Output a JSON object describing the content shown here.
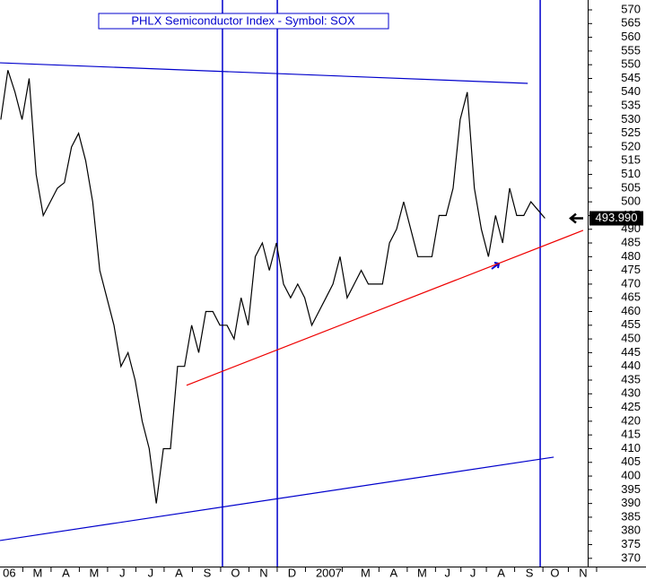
{
  "chart_data": {
    "type": "line",
    "title": "PHLX Semiconductor Index - Symbol: SOX",
    "xlim": [
      -0.33,
      20.46
    ],
    "ylim": [
      367,
      573.6
    ],
    "xticks": [
      {
        "value": 0,
        "label": "06"
      },
      {
        "value": 1,
        "label": "M"
      },
      {
        "value": 2,
        "label": "A"
      },
      {
        "value": 3,
        "label": "M"
      },
      {
        "value": 4,
        "label": "J"
      },
      {
        "value": 5,
        "label": "J"
      },
      {
        "value": 6,
        "label": "A"
      },
      {
        "value": 7,
        "label": "S"
      },
      {
        "value": 8,
        "label": "O"
      },
      {
        "value": 9,
        "label": "N"
      },
      {
        "value": 10,
        "label": "D"
      },
      {
        "value": 11.3,
        "label": "2007"
      },
      {
        "value": 12.6,
        "label": "M"
      },
      {
        "value": 13.6,
        "label": "A"
      },
      {
        "value": 14.6,
        "label": "M"
      },
      {
        "value": 15.5,
        "label": "J"
      },
      {
        "value": 16.4,
        "label": "J"
      },
      {
        "value": 17.4,
        "label": "A"
      },
      {
        "value": 18.4,
        "label": "S"
      },
      {
        "value": 19.3,
        "label": "O"
      },
      {
        "value": 20.3,
        "label": "N"
      }
    ],
    "yticks": [
      370,
      375,
      380,
      385,
      390,
      395,
      400,
      405,
      410,
      415,
      420,
      425,
      430,
      435,
      440,
      445,
      450,
      455,
      460,
      465,
      470,
      475,
      480,
      485,
      490,
      495,
      500,
      505,
      510,
      515,
      520,
      525,
      530,
      535,
      540,
      545,
      550,
      555,
      560,
      565,
      570
    ],
    "series": [
      {
        "name": "SOX",
        "color": "#000000",
        "x": [
          -0.3,
          -0.05,
          0.2,
          0.45,
          0.7,
          0.95,
          1.2,
          1.45,
          1.7,
          1.95,
          2.2,
          2.45,
          2.7,
          2.95,
          3.2,
          3.45,
          3.7,
          3.95,
          4.2,
          4.45,
          4.7,
          4.95,
          5.2,
          5.45,
          5.7,
          5.95,
          6.2,
          6.45,
          6.7,
          6.95,
          7.2,
          7.45,
          7.7,
          7.95,
          8.2,
          8.45,
          8.7,
          8.95,
          9.2,
          9.45,
          9.7,
          9.95,
          10.2,
          10.45,
          10.7,
          10.95,
          11.2,
          11.45,
          11.7,
          11.95,
          12.2,
          12.45,
          12.7,
          12.95,
          13.2,
          13.45,
          13.7,
          13.95,
          14.2,
          14.45,
          14.7,
          14.95,
          15.2,
          15.45,
          15.7,
          15.95,
          16.2,
          16.45,
          16.7,
          16.95,
          17.2,
          17.45,
          17.7,
          17.95,
          18.2,
          18.45,
          18.7,
          18.95
        ],
        "values": [
          530,
          548,
          540,
          530,
          545,
          510,
          495,
          500,
          505,
          507,
          520,
          525,
          515,
          500,
          475,
          465,
          455,
          440,
          445,
          435,
          420,
          410,
          390,
          410,
          410,
          440,
          440,
          455,
          445,
          460,
          460,
          455,
          455,
          450,
          465,
          455,
          480,
          485,
          475,
          485,
          470,
          465,
          470,
          465,
          455,
          460,
          465,
          470,
          480,
          465,
          470,
          475,
          470,
          470,
          470,
          485,
          490,
          500,
          490,
          480,
          480,
          480,
          495,
          495,
          505,
          530,
          540,
          505,
          490,
          480,
          495,
          485,
          505,
          495,
          495,
          500,
          497,
          494
        ]
      }
    ],
    "trendlines": [
      {
        "color": "#0000cc",
        "x": [
          -0.33,
          18.34
        ],
        "values": [
          550.7,
          543.2
        ]
      },
      {
        "color": "#ee0000",
        "x": [
          6.27,
          20.3
        ],
        "values": [
          433.1,
          489.6
        ]
      },
      {
        "color": "#0000cc",
        "x": [
          -0.33,
          19.26
        ],
        "values": [
          376.5,
          406.9
        ]
      }
    ],
    "vlines": {
      "color": "#0000cc",
      "x": [
        7.54,
        9.48,
        18.78
      ]
    },
    "last_value": {
      "value": 493.99,
      "label": "493.990"
    }
  }
}
